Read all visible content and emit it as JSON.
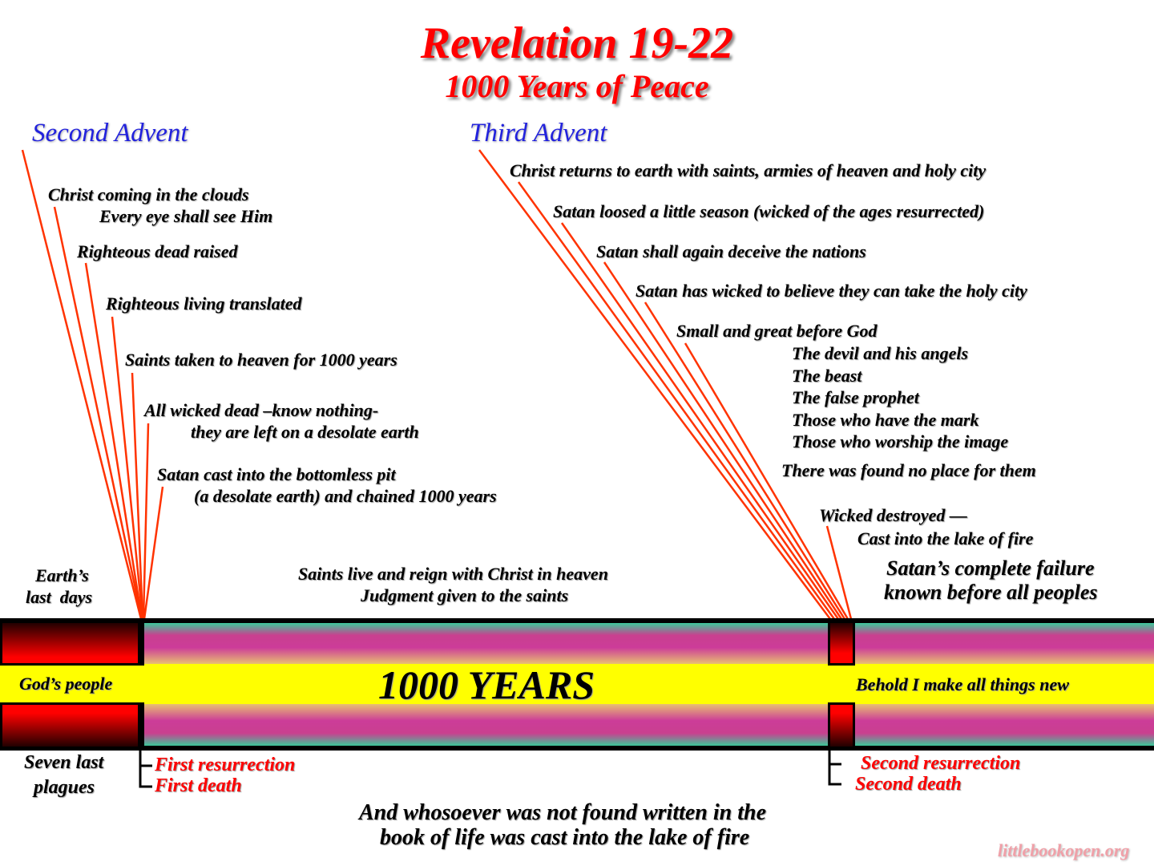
{
  "title": "Revelation 19-22",
  "subtitle": "1000 Years of Peace",
  "second_advent": {
    "heading": "Second Advent",
    "items": [
      "Christ coming in the clouds",
      "Every eye shall see Him",
      "Righteous dead raised",
      "Righteous living translated",
      "Saints taken to heaven for 1000 years",
      "All wicked dead –know nothing-",
      "they are left on a desolate earth",
      "Satan cast into the bottomless pit",
      "(a desolate earth) and chained 1000 years"
    ]
  },
  "third_advent": {
    "heading": "Third Advent",
    "items": [
      "Christ returns to earth with saints, armies of heaven and holy city",
      "Satan loosed a little season (wicked of the ages resurrected)",
      "Satan shall again deceive the nations",
      "Satan has wicked to believe they can take the holy city",
      "Small and great before God",
      "The devil and his angels",
      "The beast",
      "The false prophet",
      "Those who have the mark",
      "Those who worship the image",
      "There was found no place for them",
      "Wicked destroyed —",
      "Cast into the lake of fire"
    ]
  },
  "failure": [
    "Satan’s complete failure",
    "known before all peoples"
  ],
  "earths_last_days": [
    "Earth’s",
    "last  days"
  ],
  "saints_reign": [
    "Saints live and reign with Christ in heaven",
    "Judgment given to the saints"
  ],
  "bar": {
    "left_label": "God’s people",
    "center_label": "1000 YEARS",
    "right_label": "Behold I make all things new"
  },
  "below_left": [
    "Seven last",
    "plagues"
  ],
  "first": [
    "First resurrection",
    "First death"
  ],
  "second": [
    "Second resurrection",
    "Second death"
  ],
  "footer": [
    "And whosoever was not found written in the",
    "book of life was cast into the lake of fire"
  ],
  "watermark": "littlebookopen.org",
  "colors": {
    "title": "#ff0000",
    "advent_heading": "#2222dd",
    "pointer_lines": "#ff3300",
    "center_band": "#ffff00",
    "box_red": "#ff0000"
  }
}
